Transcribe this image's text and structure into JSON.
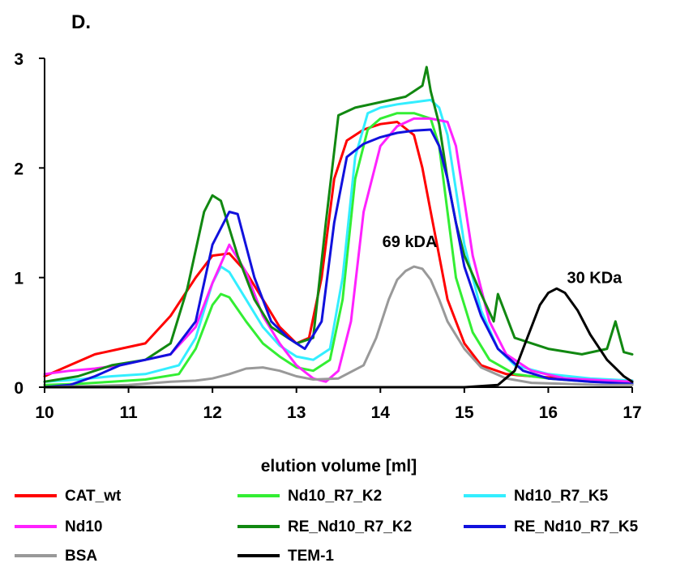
{
  "panel_label": "D.",
  "chart_data": {
    "type": "line",
    "title": "",
    "xlabel": "elution volume [ml]",
    "ylabel": "",
    "xlim": [
      10,
      17
    ],
    "ylim": [
      0,
      3
    ],
    "xticks": [
      "10",
      "11",
      "12",
      "13",
      "14",
      "15",
      "16",
      "17"
    ],
    "yticks": [
      "0",
      "1",
      "2",
      "3"
    ],
    "grid": false,
    "legend_position": "bottom",
    "annotations": [
      {
        "text": "69 kDA",
        "x": 14.35,
        "y": 1.28
      },
      {
        "text": "30 KDa",
        "x": 16.55,
        "y": 0.95
      }
    ],
    "series": [
      {
        "name": "CAT_wt",
        "color": "#ff0000",
        "x": [
          10.0,
          10.3,
          10.6,
          10.9,
          11.2,
          11.5,
          11.8,
          12.0,
          12.2,
          12.4,
          12.6,
          12.8,
          13.0,
          13.15,
          13.3,
          13.45,
          13.6,
          13.8,
          14.0,
          14.2,
          14.4,
          14.5,
          14.6,
          14.7,
          14.8,
          15.0,
          15.2,
          15.5,
          15.8,
          16.2,
          16.6,
          17.0
        ],
        "y": [
          0.1,
          0.2,
          0.3,
          0.35,
          0.4,
          0.65,
          1.0,
          1.2,
          1.22,
          1.05,
          0.8,
          0.55,
          0.4,
          0.45,
          1.0,
          1.9,
          2.25,
          2.35,
          2.4,
          2.42,
          2.3,
          2.0,
          1.6,
          1.2,
          0.8,
          0.4,
          0.2,
          0.12,
          0.1,
          0.08,
          0.07,
          0.06
        ]
      },
      {
        "name": "Nd10_R7_K2",
        "color": "#33ee33",
        "x": [
          10.0,
          10.4,
          10.8,
          11.2,
          11.6,
          11.8,
          12.0,
          12.1,
          12.2,
          12.4,
          12.6,
          12.8,
          13.0,
          13.2,
          13.4,
          13.55,
          13.7,
          13.85,
          14.0,
          14.2,
          14.4,
          14.6,
          14.7,
          14.8,
          14.9,
          15.1,
          15.3,
          15.6,
          16.0,
          16.5,
          17.0
        ],
        "y": [
          0.02,
          0.03,
          0.05,
          0.07,
          0.12,
          0.35,
          0.75,
          0.85,
          0.82,
          0.6,
          0.4,
          0.28,
          0.18,
          0.15,
          0.25,
          0.8,
          1.9,
          2.35,
          2.45,
          2.5,
          2.5,
          2.45,
          2.2,
          1.6,
          1.0,
          0.5,
          0.25,
          0.12,
          0.08,
          0.05,
          0.04
        ]
      },
      {
        "name": "Nd10_R7_K5",
        "color": "#33eeff",
        "x": [
          10.0,
          10.4,
          10.8,
          11.2,
          11.6,
          11.8,
          12.0,
          12.1,
          12.2,
          12.4,
          12.6,
          12.8,
          13.0,
          13.2,
          13.4,
          13.55,
          13.7,
          13.85,
          14.0,
          14.2,
          14.4,
          14.6,
          14.7,
          14.8,
          14.9,
          15.0,
          15.2,
          15.4,
          15.6,
          16.0,
          16.5,
          17.0
        ],
        "y": [
          0.05,
          0.07,
          0.1,
          0.12,
          0.2,
          0.45,
          0.95,
          1.1,
          1.05,
          0.8,
          0.55,
          0.38,
          0.28,
          0.25,
          0.35,
          1.0,
          2.1,
          2.5,
          2.55,
          2.58,
          2.6,
          2.62,
          2.55,
          2.3,
          1.8,
          1.3,
          0.7,
          0.35,
          0.2,
          0.12,
          0.08,
          0.06
        ]
      },
      {
        "name": "Nd10",
        "color": "#ff22ff",
        "x": [
          10.0,
          10.3,
          10.6,
          10.9,
          11.2,
          11.5,
          11.8,
          12.0,
          12.2,
          12.4,
          12.6,
          12.8,
          13.0,
          13.2,
          13.35,
          13.5,
          13.65,
          13.8,
          14.0,
          14.2,
          14.4,
          14.6,
          14.8,
          14.9,
          15.0,
          15.1,
          15.3,
          15.5,
          15.8,
          16.2,
          17.0
        ],
        "y": [
          0.12,
          0.15,
          0.17,
          0.2,
          0.25,
          0.3,
          0.55,
          0.95,
          1.3,
          1.05,
          0.65,
          0.4,
          0.2,
          0.08,
          0.05,
          0.15,
          0.6,
          1.6,
          2.2,
          2.38,
          2.45,
          2.45,
          2.42,
          2.2,
          1.7,
          1.2,
          0.6,
          0.3,
          0.15,
          0.08,
          0.05
        ]
      },
      {
        "name": "RE_Nd10_R7_K2",
        "color": "#118811",
        "x": [
          10.0,
          10.4,
          10.8,
          11.2,
          11.5,
          11.7,
          11.9,
          12.0,
          12.1,
          12.3,
          12.5,
          12.7,
          13.0,
          13.2,
          13.35,
          13.5,
          13.7,
          14.0,
          14.3,
          14.5,
          14.55,
          14.6,
          14.7,
          14.8,
          14.9,
          15.0,
          15.2,
          15.35,
          15.4,
          15.6,
          16.0,
          16.4,
          16.7,
          16.8,
          16.9,
          17.0
        ],
        "y": [
          0.05,
          0.1,
          0.2,
          0.25,
          0.4,
          0.9,
          1.6,
          1.75,
          1.7,
          1.2,
          0.8,
          0.55,
          0.4,
          0.45,
          1.5,
          2.48,
          2.55,
          2.6,
          2.65,
          2.75,
          2.92,
          2.7,
          2.4,
          1.9,
          1.5,
          1.2,
          0.85,
          0.6,
          0.85,
          0.45,
          0.35,
          0.3,
          0.35,
          0.6,
          0.32,
          0.3
        ]
      },
      {
        "name": "RE_Nd10_R7_K5",
        "color": "#1111dd",
        "x": [
          10.0,
          10.3,
          10.6,
          10.9,
          11.2,
          11.5,
          11.8,
          12.0,
          12.2,
          12.3,
          12.5,
          12.7,
          12.9,
          13.1,
          13.3,
          13.45,
          13.6,
          13.8,
          14.0,
          14.2,
          14.4,
          14.6,
          14.7,
          14.8,
          14.9,
          15.0,
          15.2,
          15.4,
          15.7,
          16.0,
          16.5,
          17.0
        ],
        "y": [
          0.0,
          0.02,
          0.1,
          0.2,
          0.25,
          0.3,
          0.6,
          1.3,
          1.6,
          1.58,
          1.0,
          0.6,
          0.45,
          0.35,
          0.6,
          1.5,
          2.1,
          2.22,
          2.28,
          2.32,
          2.34,
          2.35,
          2.2,
          1.9,
          1.5,
          1.1,
          0.65,
          0.35,
          0.15,
          0.08,
          0.05,
          0.03
        ]
      },
      {
        "name": "BSA",
        "color": "#999999",
        "x": [
          10.0,
          11.0,
          11.5,
          11.8,
          12.0,
          12.2,
          12.4,
          12.6,
          12.8,
          13.0,
          13.2,
          13.5,
          13.8,
          13.95,
          14.1,
          14.2,
          14.3,
          14.4,
          14.5,
          14.6,
          14.7,
          14.8,
          15.0,
          15.2,
          15.5,
          15.8,
          16.2,
          16.6,
          17.0
        ],
        "y": [
          0.0,
          0.02,
          0.05,
          0.06,
          0.08,
          0.12,
          0.17,
          0.18,
          0.15,
          0.1,
          0.07,
          0.08,
          0.2,
          0.45,
          0.8,
          0.98,
          1.06,
          1.1,
          1.08,
          0.98,
          0.8,
          0.6,
          0.35,
          0.18,
          0.08,
          0.04,
          0.03,
          0.02,
          0.02
        ]
      },
      {
        "name": "TEM-1",
        "color": "#000000",
        "x": [
          10.0,
          11.0,
          12.0,
          13.0,
          14.0,
          15.0,
          15.4,
          15.6,
          15.75,
          15.9,
          16.0,
          16.1,
          16.2,
          16.35,
          16.5,
          16.7,
          16.9,
          17.0
        ],
        "y": [
          0.0,
          0.0,
          0.0,
          0.0,
          0.0,
          0.0,
          0.02,
          0.15,
          0.45,
          0.75,
          0.86,
          0.9,
          0.86,
          0.7,
          0.48,
          0.25,
          0.1,
          0.05
        ]
      }
    ]
  }
}
